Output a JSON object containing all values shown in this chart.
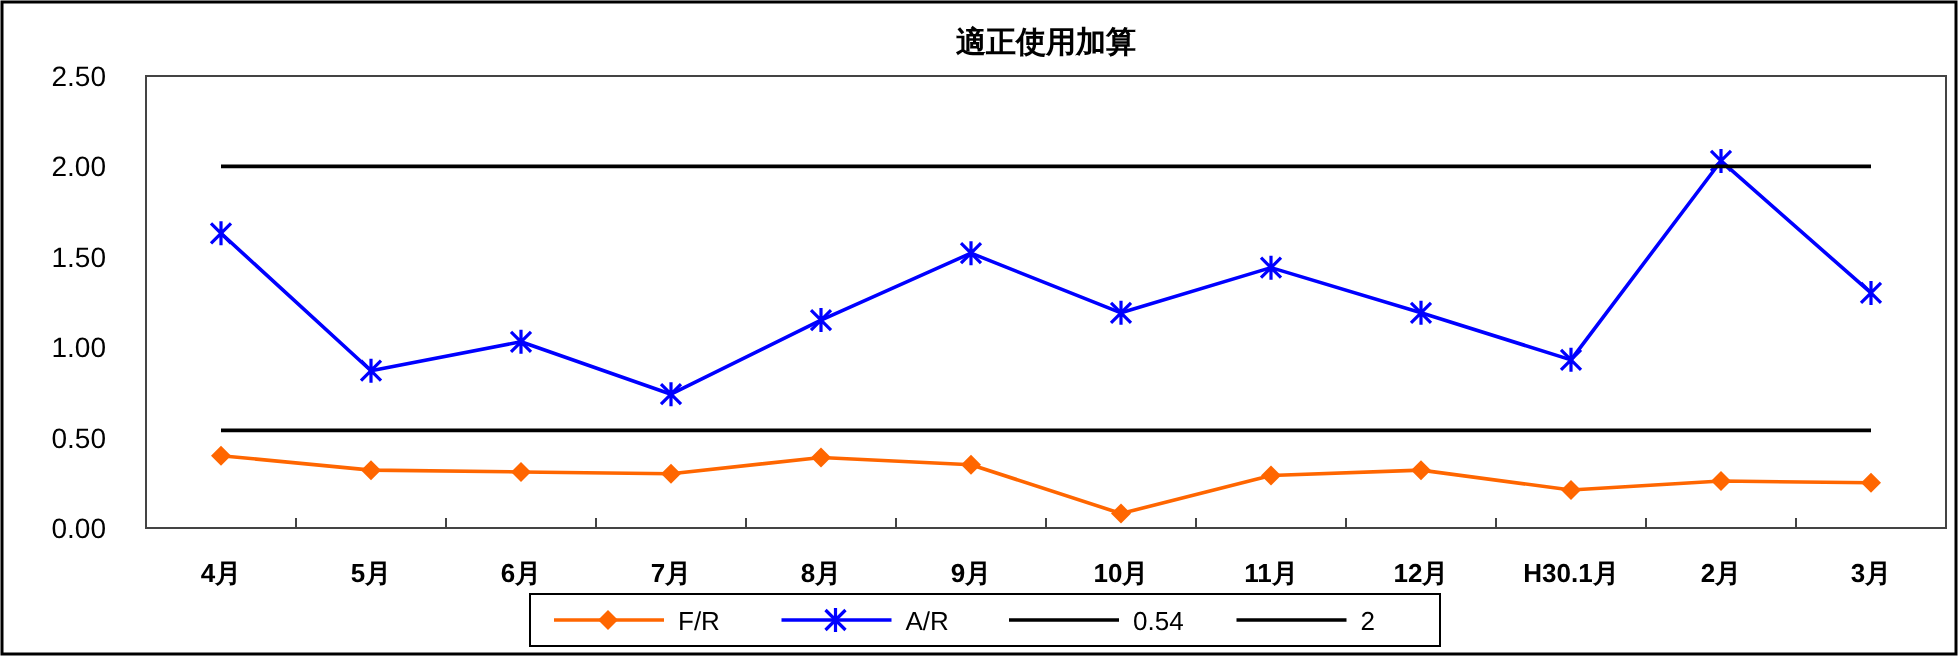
{
  "chart_data": {
    "type": "line",
    "title": "適正使用加算",
    "categories": [
      "4月",
      "5月",
      "6月",
      "7月",
      "8月",
      "9月",
      "10月",
      "11月",
      "12月",
      "H30.1月",
      "2月",
      "3月"
    ],
    "series": [
      {
        "name": "F/R",
        "color": "#ff6600",
        "marker": "diamond",
        "values": [
          0.4,
          0.32,
          0.31,
          0.3,
          0.39,
          0.35,
          0.08,
          0.29,
          0.32,
          0.21,
          0.26,
          0.25
        ]
      },
      {
        "name": "A/R",
        "color": "#0000ff",
        "marker": "cross",
        "values": [
          1.63,
          0.87,
          1.03,
          0.74,
          1.15,
          1.52,
          1.19,
          1.44,
          1.19,
          0.93,
          2.03,
          1.3
        ]
      },
      {
        "name": "0.54",
        "color": "#000000",
        "marker": "none",
        "values": [
          0.54,
          0.54,
          0.54,
          0.54,
          0.54,
          0.54,
          0.54,
          0.54,
          0.54,
          0.54,
          0.54,
          0.54
        ]
      },
      {
        "name": "2",
        "color": "#000000",
        "marker": "none",
        "values": [
          2,
          2,
          2,
          2,
          2,
          2,
          2,
          2,
          2,
          2,
          2,
          2
        ]
      }
    ],
    "ylim": [
      0,
      2.5
    ],
    "yticks": [
      {
        "value": 0,
        "label": "0.00"
      },
      {
        "value": 0.5,
        "label": "0.50"
      },
      {
        "value": 1,
        "label": "1.00"
      },
      {
        "value": 1.5,
        "label": "1.50"
      },
      {
        "value": 2,
        "label": "2.00"
      },
      {
        "value": 2.5,
        "label": "2.50"
      }
    ],
    "grid": false,
    "legend": "bottom",
    "line_style": "solid"
  }
}
